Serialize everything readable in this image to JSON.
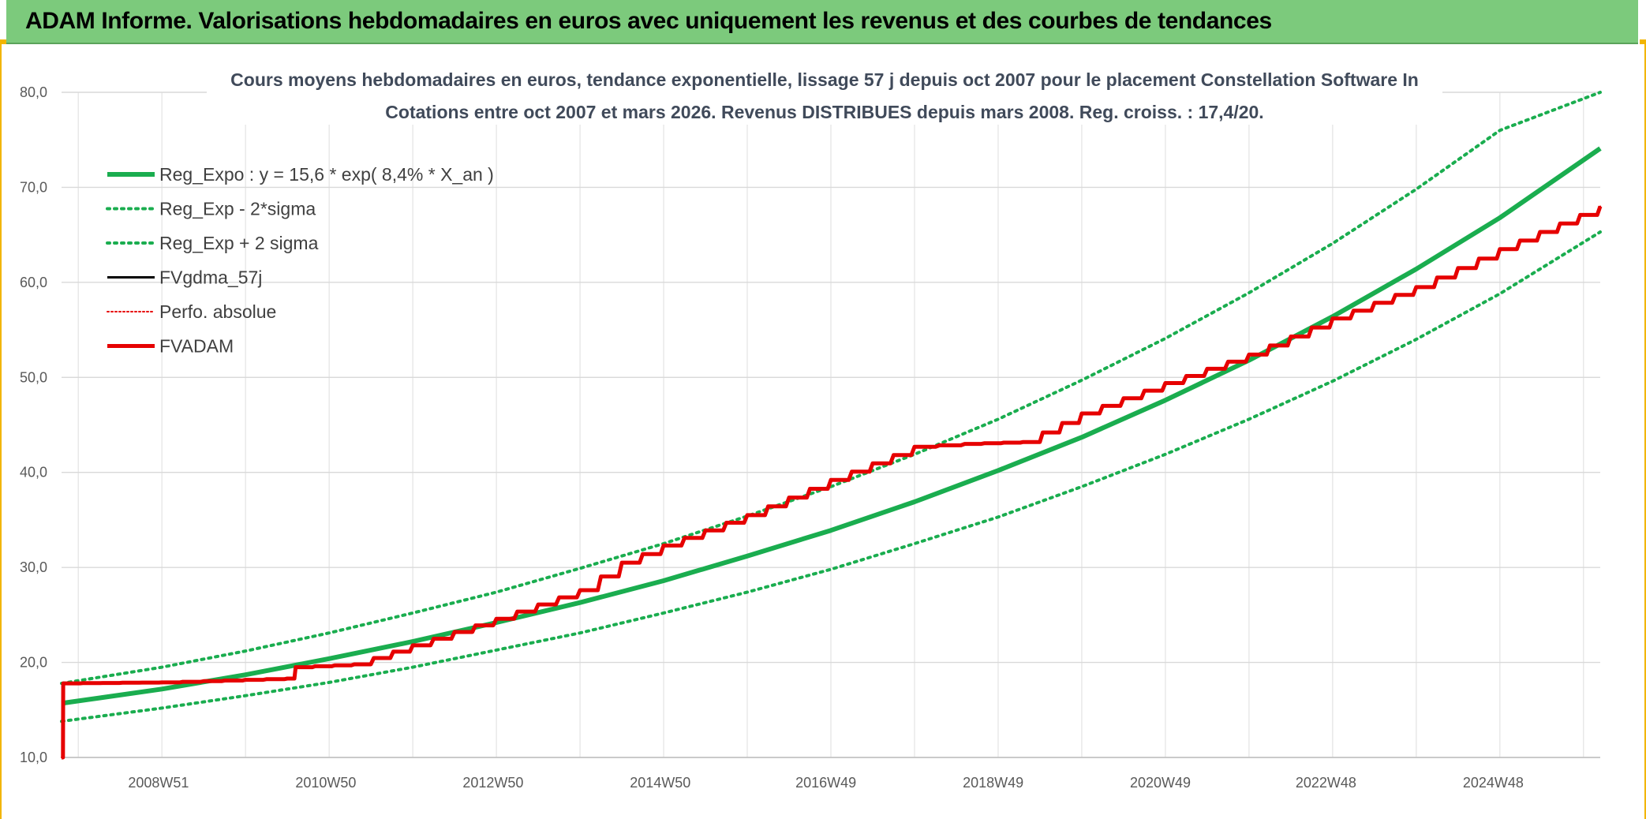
{
  "banner": {
    "title": "ADAM Informe. Valorisations hebdomadaires en euros avec uniquement les revenus et des courbes de tendances"
  },
  "colors": {
    "banner_bg": "#7cca7c",
    "frame_accent": "#f2b500",
    "trend_green": "#1aad4f",
    "adam_red": "#e60000",
    "gridline": "#d9d9d9"
  },
  "chart_data": {
    "type": "line",
    "title": "Cours moyens hebdomadaires en euros, tendance exponentielle, lissage 57 j depuis oct 2007 pour le placement Constellation Software In",
    "subtitle": "Cotations entre oct 2007 et mars 2026. Revenus DISTRIBUES depuis mars 2008. Reg. croiss. : 17,4/20.",
    "xlabel": "",
    "ylabel": "",
    "ylim": [
      10,
      80
    ],
    "yticks": [
      "10,0",
      "20,0",
      "30,0",
      "40,0",
      "50,0",
      "60,0",
      "70,0",
      "80,0"
    ],
    "xlim": [
      2007.8,
      2026.2
    ],
    "xticks": [
      {
        "label": "2008W51",
        "x": 2008.96
      },
      {
        "label": "2010W50",
        "x": 2010.96
      },
      {
        "label": "2012W50",
        "x": 2012.96
      },
      {
        "label": "2014W50",
        "x": 2014.96
      },
      {
        "label": "2016W49",
        "x": 2016.94
      },
      {
        "label": "2018W49",
        "x": 2018.94
      },
      {
        "label": "2020W49",
        "x": 2020.94
      },
      {
        "label": "2022W48",
        "x": 2022.92
      },
      {
        "label": "2024W48",
        "x": 2024.92
      }
    ],
    "grid": true,
    "legend_position": "top-left",
    "series": [
      {
        "name": "Reg_Expo : y = 15,6 * exp( 8,4% *  X_an )",
        "style": "solid-thick",
        "color": "#1aad4f",
        "x": [
          2007.8,
          2009,
          2010,
          2011,
          2012,
          2013,
          2014,
          2015,
          2016,
          2017,
          2018,
          2019,
          2020,
          2021,
          2022,
          2023,
          2024,
          2025,
          2026.2
        ],
        "y": [
          15.7,
          17.2,
          18.7,
          20.4,
          22.2,
          24.2,
          26.3,
          28.6,
          31.2,
          33.9,
          36.9,
          40.2,
          43.7,
          47.6,
          51.8,
          56.4,
          61.4,
          66.8,
          74.1
        ]
      },
      {
        "name": "Reg_Exp - 2*sigma",
        "style": "dotted",
        "color": "#1aad4f",
        "x": [
          2007.8,
          2009,
          2010,
          2011,
          2012,
          2013,
          2014,
          2015,
          2016,
          2017,
          2018,
          2019,
          2020,
          2021,
          2022,
          2023,
          2024,
          2025,
          2026.2
        ],
        "y": [
          13.8,
          15.2,
          16.5,
          17.9,
          19.5,
          21.3,
          23.1,
          25.2,
          27.4,
          29.8,
          32.5,
          35.3,
          38.5,
          41.9,
          45.6,
          49.6,
          54.0,
          58.8,
          65.3
        ]
      },
      {
        "name": "Reg_Exp + 2 sigma",
        "style": "dotted",
        "color": "#1aad4f",
        "x": [
          2007.8,
          2009,
          2010,
          2011,
          2012,
          2013,
          2014,
          2015,
          2016,
          2017,
          2018,
          2019,
          2020,
          2021,
          2022,
          2023,
          2024,
          2025,
          2026.2
        ],
        "y": [
          17.8,
          19.5,
          21.2,
          23.1,
          25.2,
          27.4,
          29.9,
          32.5,
          35.4,
          38.5,
          41.9,
          45.6,
          49.7,
          54.1,
          58.9,
          64.1,
          69.8,
          76.0,
          84.1
        ]
      },
      {
        "name": "FVgdma_57j",
        "style": "solid",
        "color": "#000000",
        "x": [
          2007.8,
          2007.82,
          2009,
          2010.5,
          2010.6,
          2011.3,
          2012,
          2013,
          2014,
          2014.5,
          2015,
          2016,
          2017,
          2018,
          2018.6,
          2019.3,
          2020,
          2021,
          2022,
          2023,
          2024,
          2025,
          2026.2
        ],
        "y": [
          10.0,
          17.8,
          17.9,
          18.3,
          19.5,
          19.8,
          21.8,
          24.6,
          27.6,
          30.5,
          32.3,
          35.5,
          39.2,
          42.7,
          43.0,
          43.2,
          46.2,
          49.4,
          52.4,
          56.2,
          59.5,
          63.5,
          68.0
        ]
      },
      {
        "name": "Perfo. absolue",
        "style": "dotted",
        "color": "#e60000",
        "x": [
          2007.8,
          2007.82,
          2009,
          2010.5,
          2010.6,
          2011.3,
          2012,
          2013,
          2014,
          2014.5,
          2015,
          2016,
          2017,
          2018,
          2018.6,
          2019.3,
          2020,
          2021,
          2022,
          2023,
          2024,
          2025,
          2026.2
        ],
        "y": [
          10.0,
          17.8,
          17.9,
          18.3,
          19.5,
          19.8,
          21.8,
          24.6,
          27.6,
          30.5,
          32.3,
          35.5,
          39.2,
          42.7,
          43.0,
          43.2,
          46.2,
          49.4,
          52.4,
          56.2,
          59.5,
          63.5,
          68.0
        ]
      },
      {
        "name": "FVADAM",
        "style": "solid-thick",
        "color": "#e60000",
        "x": [
          2007.8,
          2007.82,
          2009,
          2010.5,
          2010.6,
          2011.3,
          2012,
          2013,
          2014,
          2014.5,
          2015,
          2016,
          2017,
          2018,
          2018.6,
          2019.3,
          2020,
          2021,
          2022,
          2023,
          2024,
          2025,
          2026.2
        ],
        "y": [
          10.0,
          17.8,
          17.9,
          18.3,
          19.5,
          19.8,
          21.8,
          24.6,
          27.6,
          30.5,
          32.3,
          35.5,
          39.2,
          42.7,
          43.0,
          43.2,
          46.2,
          49.4,
          52.4,
          56.2,
          59.5,
          63.5,
          68.0
        ]
      }
    ]
  }
}
